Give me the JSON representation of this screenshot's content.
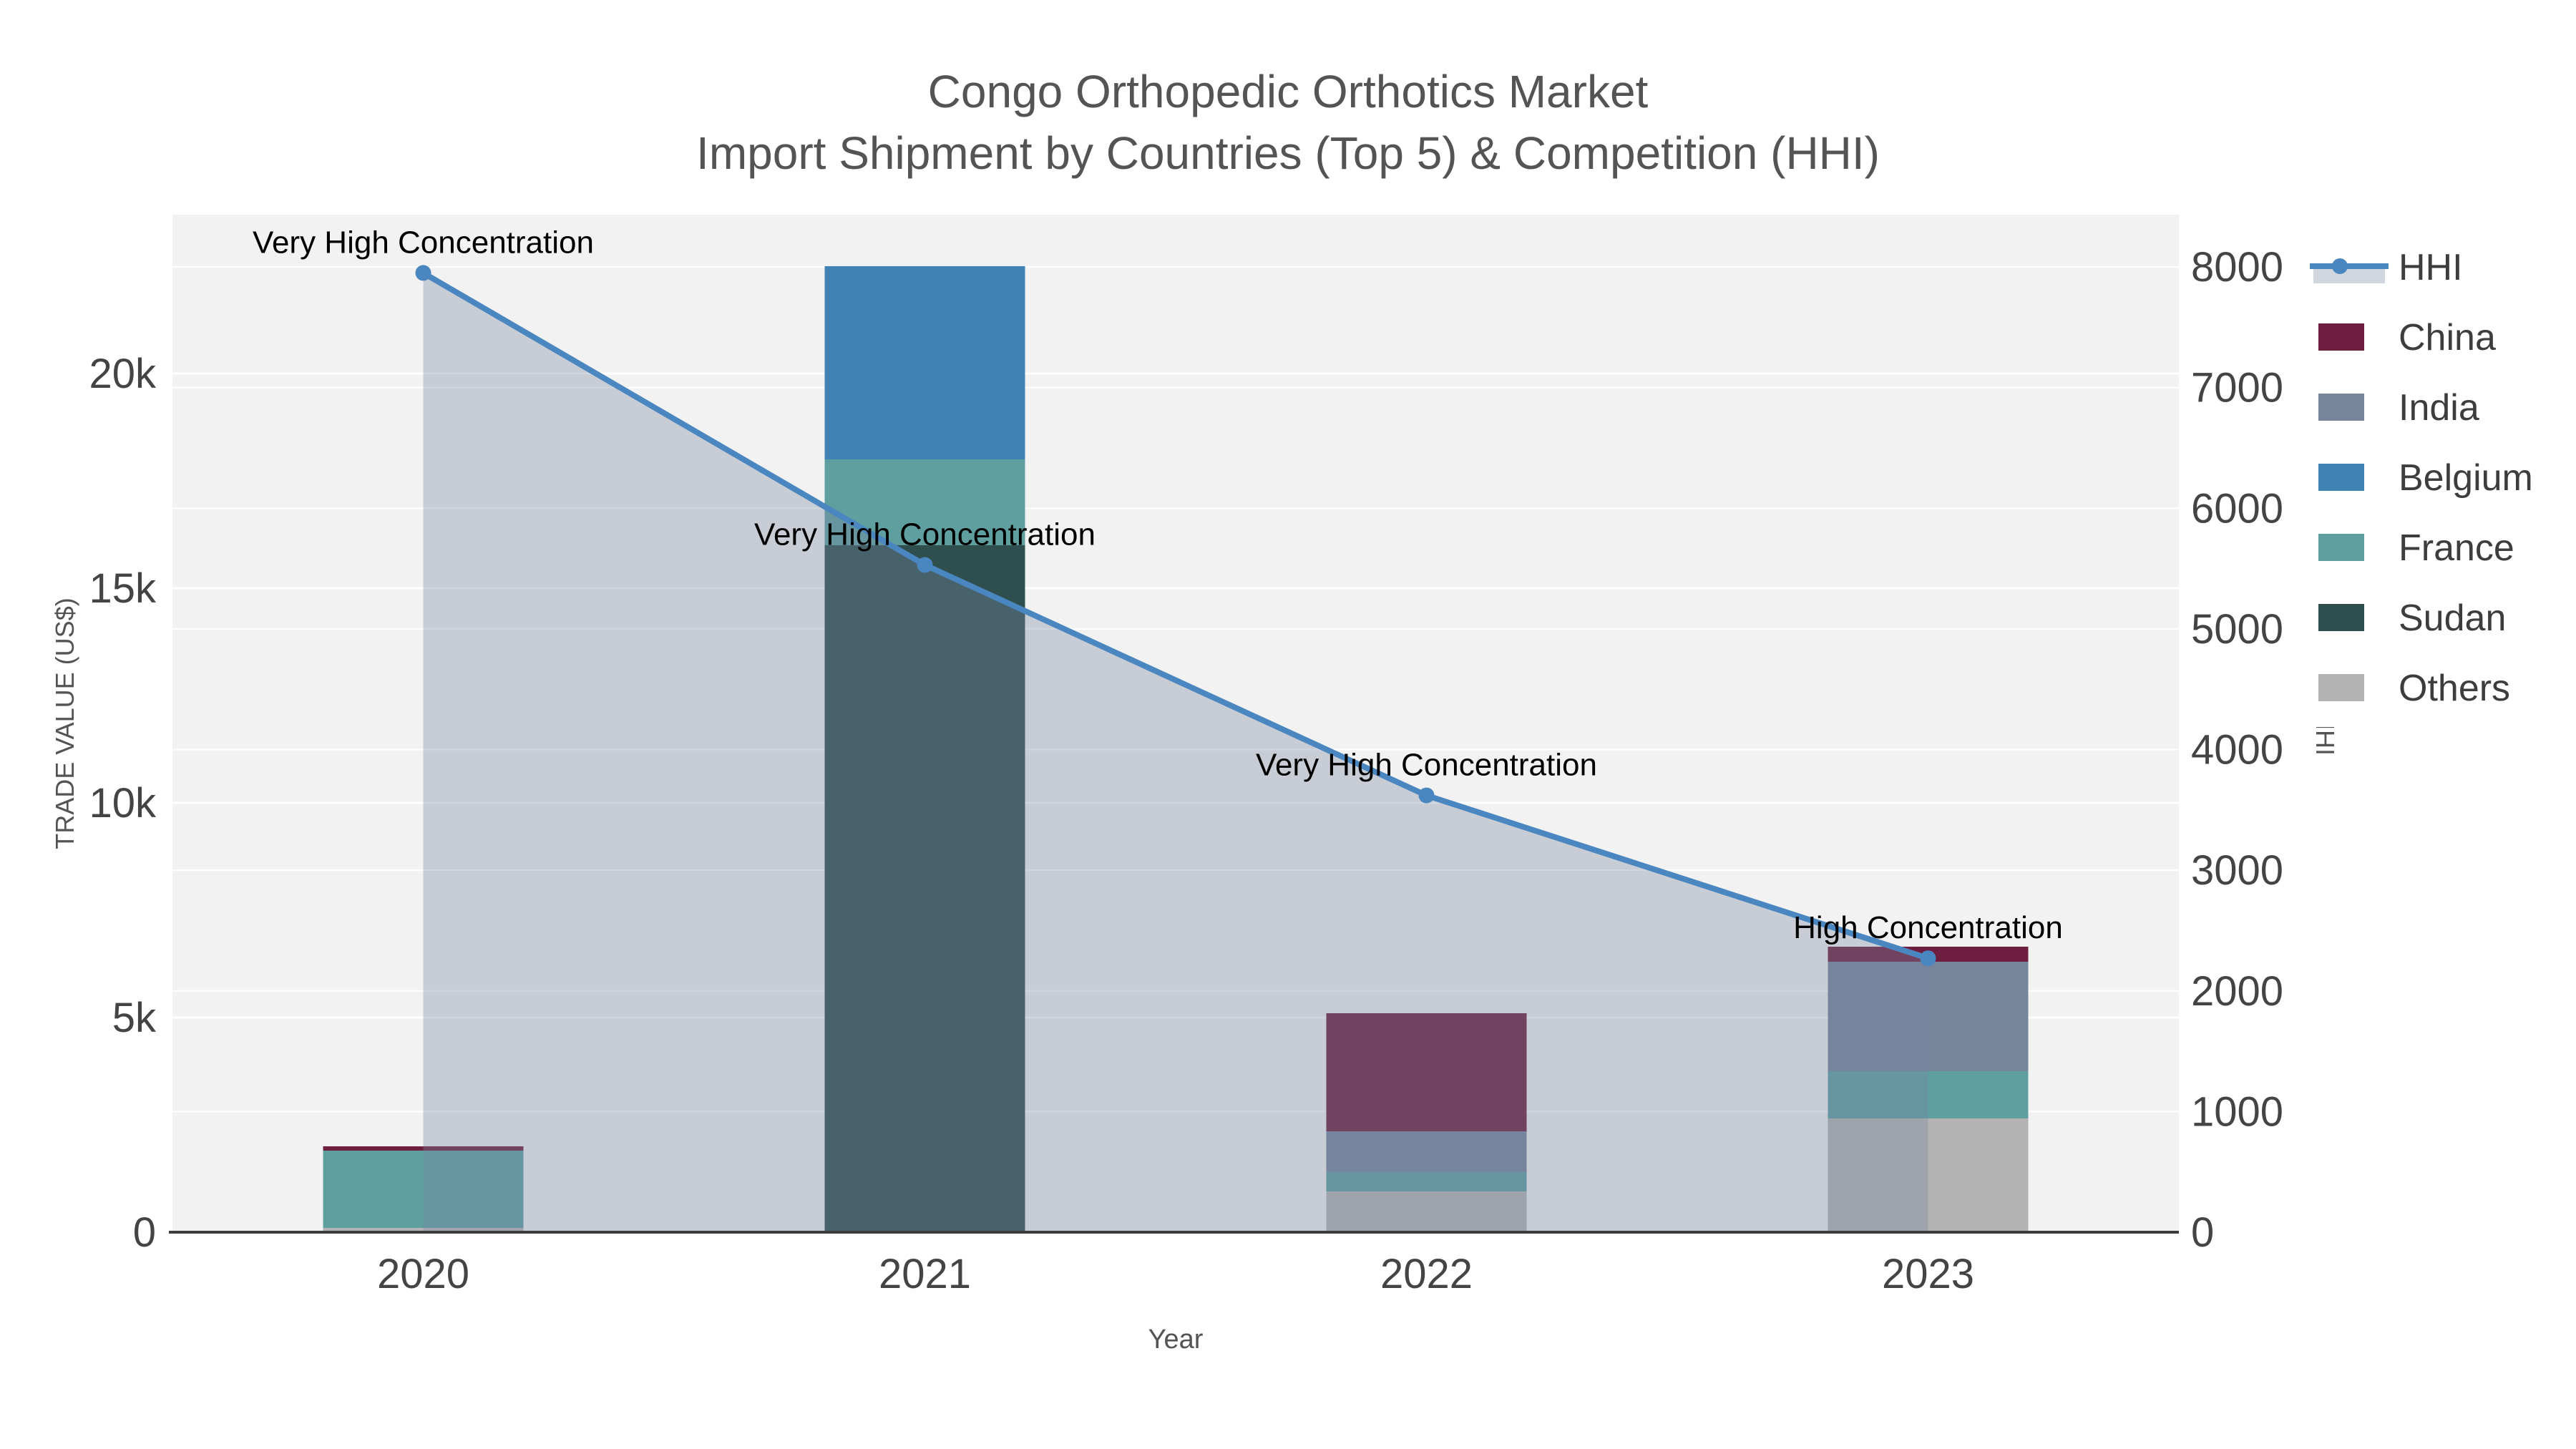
{
  "title": {
    "line1": "Congo Orthopedic Orthotics Market",
    "line2": "Import Shipment by Countries (Top 5) & Competition (HHI)"
  },
  "colors": {
    "plot_bg": "#f2f2f2",
    "grid": "#ffffff",
    "axis_line": "#3c3c3c",
    "tick_text": "#444444",
    "title_text": "#545454",
    "annotation_text": "#000000",
    "legend_text": "#3d3d3d",
    "legend_bg": "#ffffff"
  },
  "chart_data": {
    "type": "bar",
    "subtype": "stacked-bar-with-line",
    "categories": [
      "2020",
      "2021",
      "2022",
      "2023"
    ],
    "stack_order": [
      "Others",
      "Sudan",
      "France",
      "Belgium",
      "India",
      "China"
    ],
    "series": [
      {
        "name": "China",
        "color": "#6e1f3f",
        "values": [
          100,
          0,
          2750,
          350
        ]
      },
      {
        "name": "India",
        "color": "#76859b",
        "values": [
          0,
          0,
          950,
          2550
        ]
      },
      {
        "name": "Belgium",
        "color": "#4182b4",
        "values": [
          0,
          4500,
          0,
          0
        ]
      },
      {
        "name": "France",
        "color": "#5f9fa0",
        "values": [
          1800,
          2000,
          450,
          1100
        ]
      },
      {
        "name": "Sudan",
        "color": "#2f4f4f",
        "values": [
          0,
          16000,
          0,
          0
        ]
      },
      {
        "name": "Others",
        "color": "#b3b3b3",
        "values": [
          100,
          0,
          950,
          2650
        ]
      }
    ],
    "line_series": {
      "name": "HHI",
      "color": "#4a86c0",
      "fill_color": "rgba(119,136,161,0.35)",
      "values": [
        7950,
        5530,
        3620,
        2270
      ]
    },
    "annotations": [
      "Very High Concentration",
      "Very High Concentration",
      "Very High Concentration",
      "High Concentration"
    ],
    "x_axis": {
      "title": "Year"
    },
    "y_left": {
      "title": "TRADE VALUE (US$)",
      "max": 23700,
      "ticks": [
        {
          "value": 0,
          "label": "0"
        },
        {
          "value": 5000,
          "label": "5k"
        },
        {
          "value": 10000,
          "label": "10k"
        },
        {
          "value": 15000,
          "label": "15k"
        },
        {
          "value": 20000,
          "label": "20k"
        }
      ]
    },
    "y_right": {
      "title": "HHI",
      "max": 8000,
      "ticks": [
        {
          "value": 0,
          "label": "0"
        },
        {
          "value": 1000,
          "label": "1000"
        },
        {
          "value": 2000,
          "label": "2000"
        },
        {
          "value": 3000,
          "label": "3000"
        },
        {
          "value": 4000,
          "label": "4000"
        },
        {
          "value": 5000,
          "label": "5000"
        },
        {
          "value": 6000,
          "label": "6000"
        },
        {
          "value": 7000,
          "label": "7000"
        },
        {
          "value": 8000,
          "label": "8000"
        }
      ]
    },
    "legend": [
      "HHI",
      "China",
      "India",
      "Belgium",
      "France",
      "Sudan",
      "Others"
    ],
    "legend_position": "right"
  }
}
